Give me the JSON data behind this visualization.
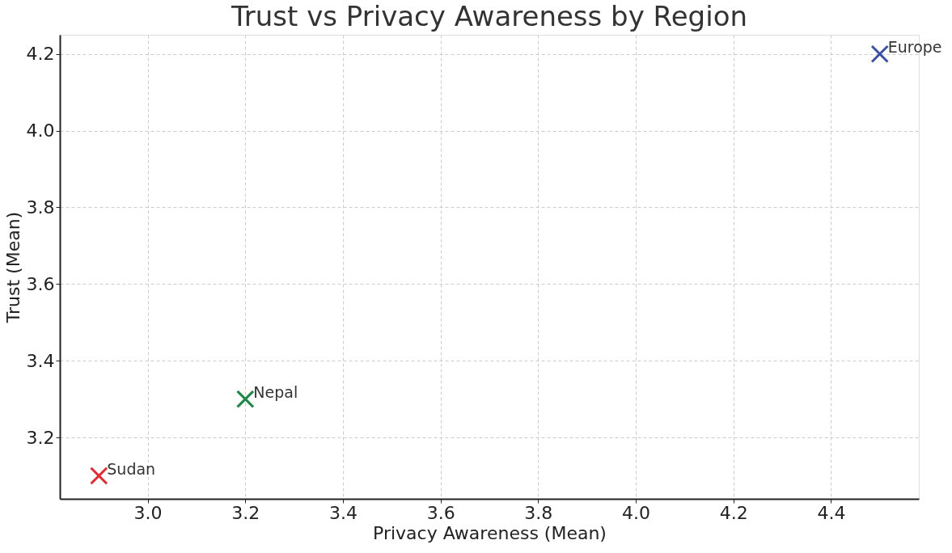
{
  "chart_data": {
    "type": "scatter",
    "title": "Trust vs Privacy Awareness by Region",
    "xlabel": "Privacy Awareness (Mean)",
    "ylabel": "Trust (Mean)",
    "series": [
      {
        "name": "Sudan",
        "color": "#e8262b",
        "x": [
          2.9
        ],
        "values": [
          3.1
        ]
      },
      {
        "name": "Nepal",
        "color": "#1a8a45",
        "x": [
          3.2
        ],
        "values": [
          3.3
        ]
      },
      {
        "name": "Europe",
        "color": "#3a50a6",
        "x": [
          4.5
        ],
        "values": [
          4.2
        ]
      }
    ],
    "xlim": [
      2.82,
      4.58
    ],
    "xticks": [
      {
        "value": 3,
        "label": "3.0"
      },
      3.2,
      3.4,
      3.6,
      3.8,
      {
        "value": 4,
        "label": "4.0"
      },
      4.2,
      4.4
    ],
    "ylim": [
      3.04,
      4.25
    ],
    "yticks": [
      3.2,
      3.4,
      3.6,
      3.8,
      {
        "value": 4,
        "label": "4.0"
      },
      4.2
    ],
    "grid": true,
    "marker": "cross"
  }
}
